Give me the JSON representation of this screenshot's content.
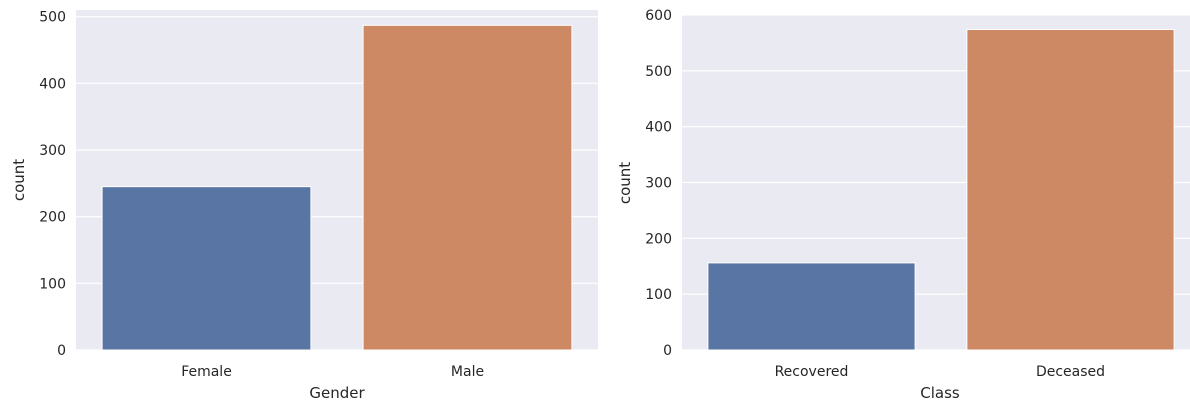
{
  "chart_data": [
    {
      "type": "bar",
      "categories": [
        "Female",
        "Male"
      ],
      "values": [
        245,
        487
      ],
      "xlabel": "Gender",
      "ylabel": "count",
      "ylim": [
        0,
        510
      ],
      "yticks": [
        0,
        100,
        200,
        300,
        400,
        500
      ],
      "colors": [
        "#5975a4",
        "#cc8963"
      ],
      "background": "#eaeaf2",
      "grid": true
    },
    {
      "type": "bar",
      "categories": [
        "Recovered",
        "Deceased"
      ],
      "values": [
        156,
        574
      ],
      "xlabel": "Class",
      "ylabel": "count",
      "ylim": [
        0,
        600
      ],
      "yticks": [
        0,
        100,
        200,
        300,
        400,
        500,
        600
      ],
      "colors": [
        "#5975a4",
        "#cc8963"
      ],
      "background": "#eaeaf2",
      "grid": true
    }
  ]
}
